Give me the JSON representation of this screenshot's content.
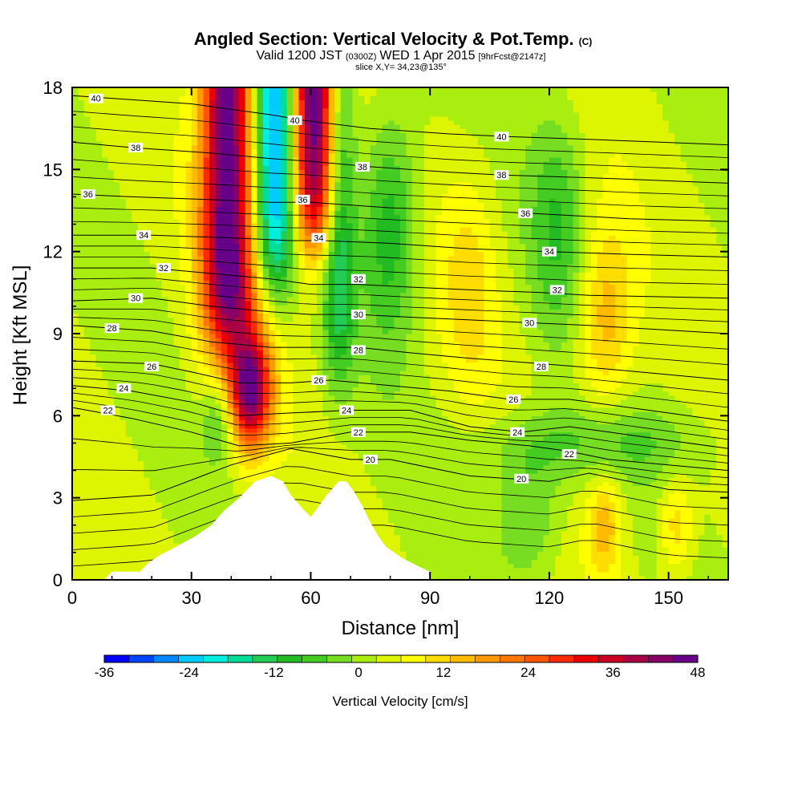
{
  "title": {
    "main": "Angled Section: Vertical Velocity & Pot.Temp.",
    "main_unit": "(C)",
    "valid_a": "Valid 1200 JST",
    "valid_b": "(0300Z)",
    "valid_c": "WED 1 Apr 2015",
    "valid_d": "[9hrFcst@2147z]",
    "slice": "slice X,Y= 34,23@135°"
  },
  "chart_data": {
    "type": "heatmap",
    "xlabel": "Distance [nm]",
    "ylabel": "Height [Kft MSL]",
    "xlim": [
      0,
      165
    ],
    "ylim": [
      0,
      18
    ],
    "x_ticks": [
      "0",
      "30",
      "60",
      "90",
      "120",
      "150"
    ],
    "y_ticks": [
      "0",
      "3",
      "6",
      "9",
      "12",
      "15",
      "18"
    ],
    "grid": false,
    "colorbar": {
      "title": "Vertical Velocity [cm/s]",
      "tick_labels": [
        "-36",
        "-24",
        "-12",
        "0",
        "12",
        "24",
        "36",
        "48"
      ],
      "tick_values": [
        -36,
        -24,
        -12,
        0,
        12,
        24,
        36,
        48
      ],
      "range": [
        -36,
        48
      ],
      "colors": [
        "#0000ff",
        "#0044ff",
        "#0088ff",
        "#00ccff",
        "#00eedd",
        "#00dd99",
        "#22cc55",
        "#22bb22",
        "#44cc22",
        "#77dd22",
        "#aaee11",
        "#ddf500",
        "#ffff00",
        "#ffdd00",
        "#ffbb00",
        "#ff9900",
        "#ff7700",
        "#ff5500",
        "#ff2a00",
        "#ee0000",
        "#cc0022",
        "#aa0044",
        "#880066",
        "#660088"
      ]
    },
    "contours_theta": [
      {
        "value": 20,
        "label": "20",
        "pts": [
          [
            0,
            2.9
          ],
          [
            20,
            3.1
          ],
          [
            40,
            4.2
          ],
          [
            55,
            4.8
          ],
          [
            70,
            4.4
          ],
          [
            80,
            4.4
          ],
          [
            100,
            3.8
          ],
          [
            120,
            3.6
          ],
          [
            130,
            3.9
          ],
          [
            150,
            3.3
          ],
          [
            165,
            3.2
          ]
        ],
        "labels_at": [
          [
            75,
            4.4
          ],
          [
            113,
            3.7
          ]
        ]
      },
      {
        "value": 22,
        "label": "22",
        "pts": [
          [
            0,
            6.3
          ],
          [
            15,
            5.9
          ],
          [
            30,
            5.4
          ],
          [
            42,
            4.9
          ],
          [
            55,
            5.0
          ],
          [
            70,
            5.4
          ],
          [
            85,
            5.4
          ],
          [
            100,
            5.1
          ],
          [
            115,
            4.9
          ],
          [
            125,
            4.7
          ],
          [
            135,
            4.4
          ],
          [
            150,
            4.2
          ],
          [
            165,
            4.0
          ]
        ],
        "labels_at": [
          [
            9,
            6.2
          ],
          [
            72,
            5.4
          ],
          [
            125,
            4.6
          ]
        ]
      },
      {
        "value": 24,
        "label": "24",
        "pts": [
          [
            0,
            7.1
          ],
          [
            15,
            6.9
          ],
          [
            30,
            6.5
          ],
          [
            42,
            6.0
          ],
          [
            55,
            6.1
          ],
          [
            70,
            6.2
          ],
          [
            85,
            6.2
          ],
          [
            100,
            5.6
          ],
          [
            113,
            5.4
          ],
          [
            125,
            5.6
          ],
          [
            140,
            5.3
          ],
          [
            165,
            4.8
          ]
        ],
        "labels_at": [
          [
            13,
            7.0
          ],
          [
            69,
            6.2
          ],
          [
            112,
            5.4
          ]
        ]
      },
      {
        "value": 26,
        "label": "26",
        "pts": [
          [
            0,
            8.0
          ],
          [
            20,
            7.9
          ],
          [
            30,
            7.6
          ],
          [
            42,
            7.2
          ],
          [
            55,
            7.2
          ],
          [
            65,
            7.3
          ],
          [
            80,
            7.1
          ],
          [
            95,
            6.9
          ],
          [
            110,
            6.6
          ],
          [
            125,
            6.6
          ],
          [
            145,
            6.2
          ],
          [
            165,
            5.8
          ]
        ],
        "labels_at": [
          [
            20,
            7.8
          ],
          [
            62,
            7.3
          ],
          [
            111,
            6.6
          ]
        ]
      },
      {
        "value": 28,
        "label": "28",
        "pts": [
          [
            0,
            9.3
          ],
          [
            20,
            9.1
          ],
          [
            35,
            8.7
          ],
          [
            50,
            8.5
          ],
          [
            60,
            8.5
          ],
          [
            72,
            8.5
          ],
          [
            85,
            8.3
          ],
          [
            100,
            8.1
          ],
          [
            118,
            7.9
          ],
          [
            135,
            7.7
          ],
          [
            165,
            7.3
          ]
        ],
        "labels_at": [
          [
            10,
            9.2
          ],
          [
            72,
            8.4
          ],
          [
            118,
            7.8
          ]
        ]
      },
      {
        "value": 30,
        "label": "30",
        "pts": [
          [
            0,
            10.2
          ],
          [
            20,
            10.3
          ],
          [
            35,
            10.0
          ],
          [
            50,
            9.8
          ],
          [
            60,
            9.7
          ],
          [
            72,
            9.7
          ],
          [
            85,
            9.6
          ],
          [
            100,
            9.5
          ],
          [
            115,
            9.4
          ],
          [
            130,
            9.3
          ],
          [
            165,
            9.0
          ]
        ],
        "labels_at": [
          [
            16,
            10.3
          ],
          [
            72,
            9.7
          ],
          [
            115,
            9.4
          ]
        ]
      },
      {
        "value": 32,
        "label": "32",
        "pts": [
          [
            0,
            11.4
          ],
          [
            20,
            11.4
          ],
          [
            35,
            11.2
          ],
          [
            50,
            11.0
          ],
          [
            60,
            10.8
          ],
          [
            72,
            10.8
          ],
          [
            85,
            10.7
          ],
          [
            100,
            10.6
          ],
          [
            118,
            10.5
          ],
          [
            130,
            10.4
          ],
          [
            165,
            10.3
          ]
        ],
        "labels_at": [
          [
            23,
            11.4
          ],
          [
            72,
            11.0
          ],
          [
            122,
            10.6
          ]
        ]
      },
      {
        "value": 34,
        "label": "34",
        "pts": [
          [
            0,
            12.6
          ],
          [
            20,
            12.6
          ],
          [
            40,
            12.5
          ],
          [
            55,
            12.4
          ],
          [
            63,
            12.4
          ],
          [
            80,
            12.3
          ],
          [
            100,
            12.1
          ],
          [
            120,
            12.0
          ],
          [
            140,
            11.9
          ],
          [
            165,
            11.8
          ]
        ],
        "labels_at": [
          [
            18,
            12.6
          ],
          [
            62,
            12.5
          ],
          [
            120,
            12.0
          ]
        ]
      },
      {
        "value": 36,
        "label": "36",
        "pts": [
          [
            0,
            14.1
          ],
          [
            15,
            14.0
          ],
          [
            35,
            13.9
          ],
          [
            50,
            13.8
          ],
          [
            60,
            13.8
          ],
          [
            80,
            13.6
          ],
          [
            100,
            13.5
          ],
          [
            115,
            13.4
          ],
          [
            140,
            13.2
          ],
          [
            165,
            13.1
          ]
        ],
        "labels_at": [
          [
            4,
            14.1
          ],
          [
            58,
            13.9
          ],
          [
            114,
            13.4
          ]
        ]
      },
      {
        "value": 38,
        "label": "38",
        "pts": [
          [
            0,
            16.0
          ],
          [
            15,
            15.8
          ],
          [
            35,
            15.6
          ],
          [
            50,
            15.4
          ],
          [
            60,
            15.3
          ],
          [
            75,
            15.1
          ],
          [
            95,
            14.9
          ],
          [
            108,
            14.8
          ],
          [
            130,
            14.7
          ],
          [
            165,
            14.5
          ]
        ],
        "labels_at": [
          [
            16,
            15.8
          ],
          [
            73,
            15.1
          ],
          [
            108,
            14.8
          ]
        ]
      },
      {
        "value": 40,
        "label": "40",
        "pts": [
          [
            0,
            17.7
          ],
          [
            10,
            17.6
          ],
          [
            30,
            17.4
          ],
          [
            50,
            17.0
          ],
          [
            58,
            16.8
          ],
          [
            75,
            16.5
          ],
          [
            95,
            16.3
          ],
          [
            110,
            16.2
          ],
          [
            130,
            16.1
          ],
          [
            165,
            15.9
          ]
        ],
        "labels_at": [
          [
            6,
            17.6
          ],
          [
            56,
            16.8
          ],
          [
            108,
            16.2
          ]
        ]
      }
    ],
    "terrain_nm_kft": [
      [
        0,
        0
      ],
      [
        8,
        0
      ],
      [
        10,
        0.3
      ],
      [
        17,
        0.3
      ],
      [
        19,
        0.6
      ],
      [
        22,
        0.9
      ],
      [
        26,
        1.2
      ],
      [
        31,
        1.6
      ],
      [
        35,
        2.0
      ],
      [
        38,
        2.5
      ],
      [
        42,
        3.0
      ],
      [
        46,
        3.6
      ],
      [
        50,
        3.8
      ],
      [
        53,
        3.6
      ],
      [
        55,
        3.1
      ],
      [
        58,
        2.6
      ],
      [
        60,
        2.3
      ],
      [
        62,
        2.7
      ],
      [
        64,
        3.1
      ],
      [
        67,
        3.6
      ],
      [
        69,
        3.6
      ],
      [
        71,
        3.2
      ],
      [
        73,
        2.7
      ],
      [
        75,
        2.1
      ],
      [
        77,
        1.6
      ],
      [
        79,
        1.2
      ],
      [
        83,
        0.8
      ],
      [
        87,
        0.5
      ],
      [
        90,
        0.3
      ],
      [
        90,
        0
      ]
    ]
  }
}
